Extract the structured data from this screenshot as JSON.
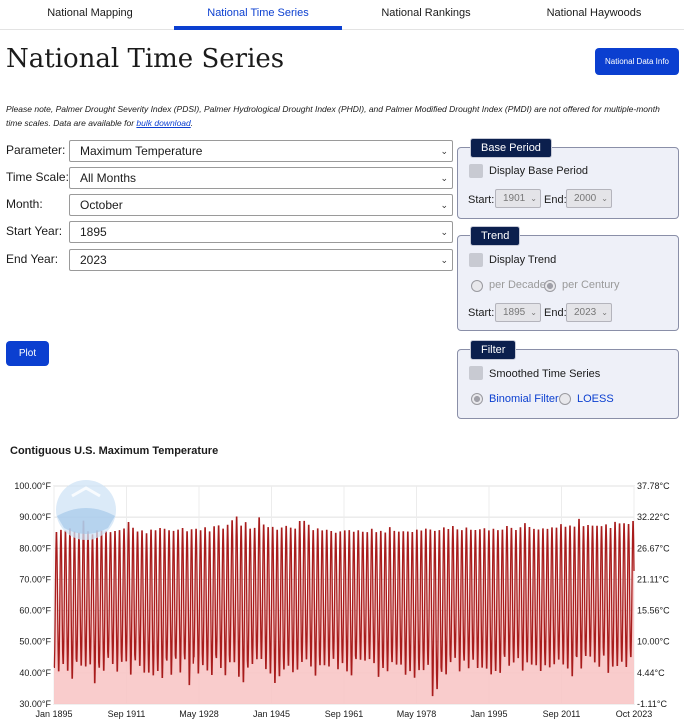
{
  "tabs": [
    {
      "label": "National Mapping",
      "active": false
    },
    {
      "label": "National Time Series",
      "active": true
    },
    {
      "label": "National Rankings",
      "active": false
    },
    {
      "label": "National Haywoods",
      "active": false
    }
  ],
  "page_title": "National Time Series",
  "info_button": "National Data Info",
  "note": {
    "text": "Please note, Palmer Drought Severity Index (PDSI), Palmer Hydrological Drought Index (PHDI), and Palmer Modified Drought Index (PMDI) are not offered for multiple-month time scales. Data are available for ",
    "link": "bulk download",
    "end": "."
  },
  "form": {
    "parameter": {
      "label": "Parameter:",
      "value": "Maximum Temperature"
    },
    "time_scale": {
      "label": "Time Scale:",
      "value": "All Months"
    },
    "month": {
      "label": "Month:",
      "value": "October"
    },
    "start_year": {
      "label": "Start Year:",
      "value": "1895"
    },
    "end_year": {
      "label": "End Year:",
      "value": "2023"
    }
  },
  "plot_button": "Plot",
  "base_period": {
    "title": "Base Period",
    "checkbox_label": "Display Base Period",
    "start_label": "Start:",
    "start_value": "1901",
    "end_label": "End:",
    "end_value": "2000"
  },
  "trend": {
    "title": "Trend",
    "checkbox_label": "Display Trend",
    "per_decade": "per Decade",
    "per_century": "per Century",
    "start_label": "Start:",
    "start_value": "1895",
    "end_label": "End:",
    "end_value": "2023"
  },
  "filter": {
    "title": "Filter",
    "checkbox_label": "Smoothed Time Series",
    "binomial": "Binomial Filter",
    "loess": "LOESS"
  },
  "colors": {
    "accent": "#0b3fd0",
    "series_line": "#a81c1c",
    "series_fill": "#f8c7c7"
  },
  "chart_data": {
    "type": "area",
    "title": "Contiguous U.S. Maximum Temperature",
    "ylim": [
      30,
      100
    ],
    "y_ticks_left": [
      "100.00°F",
      "90.00°F",
      "80.00°F",
      "70.00°F",
      "60.00°F",
      "50.00°F",
      "40.00°F",
      "30.00°F"
    ],
    "y_ticks_right": [
      "37.78°C",
      "32.22°C",
      "26.67°C",
      "21.11°C",
      "15.56°C",
      "10.00°C",
      "4.44°C",
      "-1.11°C"
    ],
    "x_ticks": [
      "Jan 1895",
      "Sep 1911",
      "May 1928",
      "Jan 1945",
      "Sep 1961",
      "May 1978",
      "Jan 1995",
      "Sep 2011",
      "Oct 2023"
    ],
    "x_range": [
      "Jan 1895",
      "Oct 2023"
    ],
    "series": [
      {
        "years": [
          1895,
          2023
        ],
        "annual_max_range": [
          84,
          91
        ],
        "annual_min_range": [
          32,
          45
        ],
        "peaks": [
          85.8,
          86.5,
          86.2,
          87.0,
          86.0,
          85.5,
          89.5,
          86.0,
          85.0,
          86.4,
          86.2,
          86.0,
          85.7,
          86.1,
          86.4,
          86.9,
          89.0,
          87.2,
          85.9,
          86.3,
          85.4,
          86.6,
          86.4,
          87.1,
          86.9,
          86.3,
          86.2,
          86.5,
          87.1,
          86.0,
          86.8,
          86.8,
          86.4,
          87.3,
          86.0,
          87.7,
          87.9,
          86.9,
          88.2,
          89.6,
          90.8,
          87.9,
          89.1,
          86.9,
          87.1,
          90.5,
          88.2,
          87.4,
          87.5,
          86.6,
          87.3,
          87.8,
          87.2,
          86.9,
          89.4,
          89.4,
          88.1,
          86.4,
          87.0,
          86.3,
          86.5,
          86.1,
          85.5,
          86.0,
          86.3,
          86.4,
          85.9,
          86.3,
          85.8,
          85.7,
          86.8,
          85.7,
          86.2,
          85.6,
          87.4,
          86.1,
          85.9,
          86.0,
          86.0,
          85.8,
          86.6,
          86.3,
          86.9,
          86.6,
          86.3,
          86.5,
          87.3,
          86.8,
          87.7,
          86.6,
          86.4,
          87.2,
          86.5,
          86.4,
          86.7,
          87.0,
          86.3,
          86.9,
          86.4,
          86.6,
          87.7,
          87.1,
          86.4,
          87.3,
          88.7,
          87.4,
          86.8,
          86.6,
          87.0,
          86.8,
          87.3,
          87.2,
          88.3,
          87.5,
          87.9,
          87.6,
          90.0,
          87.7,
          88.0,
          87.8,
          87.8,
          87.7,
          88.2,
          87.1,
          89.1,
          88.6,
          88.6,
          88.4,
          89.3
        ],
        "troughs": [
          41.0,
          39.9,
          42.3,
          40.1,
          37.5,
          43.0,
          41.7,
          41.5,
          42.2,
          36.0,
          41.1,
          40.1,
          44.3,
          42.3,
          39.8,
          43.0,
          43.1,
          38.8,
          43.5,
          41.7,
          39.5,
          39.5,
          38.6,
          40.0,
          37.7,
          43.4,
          38.8,
          44.0,
          39.5,
          43.8,
          35.4,
          44.5,
          39.2,
          41.9,
          40.2,
          38.7,
          44.2,
          41.0,
          38.6,
          42.8,
          42.8,
          38.1,
          36.3,
          41.1,
          42.3,
          43.8,
          43.9,
          40.6,
          39.2,
          36.1,
          38.3,
          40.5,
          41.7,
          39.6,
          40.4,
          42.9,
          43.8,
          41.5,
          38.5,
          41.9,
          41.9,
          41.5,
          44.0,
          40.6,
          42.6,
          39.9,
          38.6,
          43.9,
          43.7,
          43.4,
          43.9,
          42.6,
          38.1,
          41.0,
          39.9,
          42.9,
          42.1,
          42.1,
          38.8,
          40.0,
          37.8,
          40.3,
          40.3,
          42.0,
          31.8,
          34.1,
          39.7,
          38.9,
          42.9,
          44.3,
          39.9,
          43.4,
          40.9,
          43.7,
          41.0,
          41.1,
          40.8,
          38.9,
          40.0,
          39.4,
          44.6,
          41.7,
          42.8,
          44.2,
          40.1,
          42.8,
          42.1,
          41.9,
          40.0,
          41.9,
          41.2,
          42.2,
          43.7,
          42.1,
          40.8,
          38.3,
          44.5,
          40.8,
          44.9,
          44.7,
          42.8,
          41.4,
          45.0,
          39.4,
          41.4,
          41.6,
          43.0,
          41.3,
          44.5
        ]
      }
    ]
  }
}
